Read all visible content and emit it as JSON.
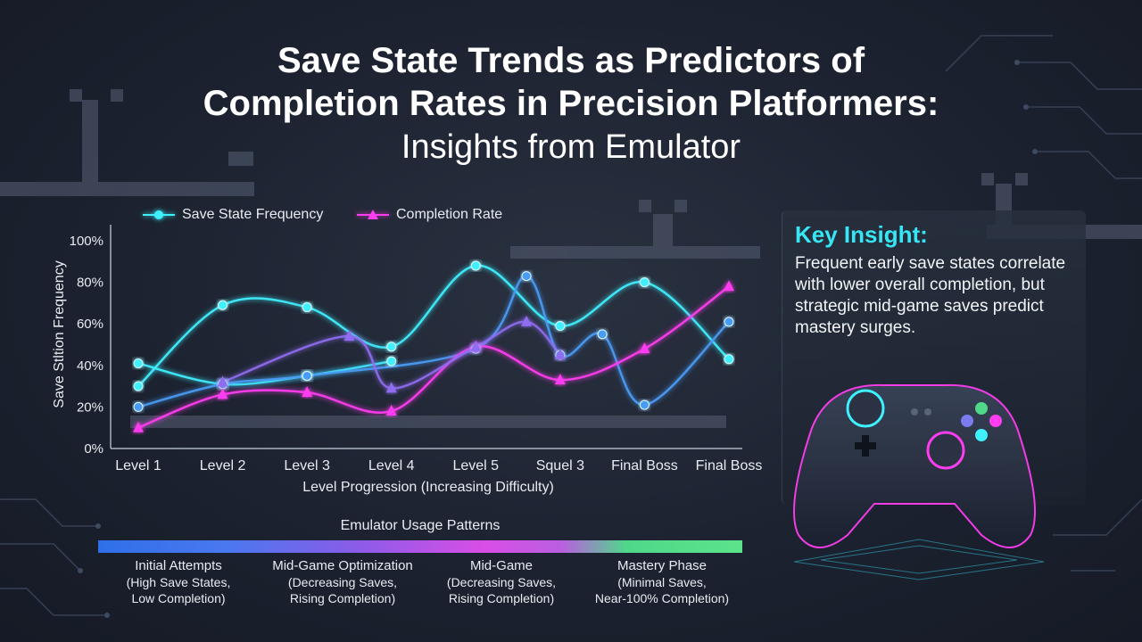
{
  "title_line1": "Save State Trends as Predictors of",
  "title_line2": "Completion Rates in Precision Platformers:",
  "subtitle": "Insights from Emulator",
  "legend": {
    "series1": "Save State Frequency",
    "series2": "Completion Rate"
  },
  "chart_data": {
    "type": "line",
    "categories": [
      "Level 1",
      "Level 2",
      "Level 3",
      "Level 4",
      "Level 5",
      "Squel 3",
      "Final Boss",
      "Final Boss"
    ],
    "xlabel": "Level Progression (Increasing Difficulty)",
    "ylabel": "Save Stltion Frequency",
    "yticks": [
      "0%",
      "20%",
      "40%",
      "60%",
      "80%",
      "100%"
    ],
    "ylim": [
      0,
      100
    ],
    "legend_position": "top",
    "series": [
      {
        "name": "Save State Frequency",
        "color": "#3ff0ff",
        "marker": "circle",
        "points": [
          [
            0,
            30
          ],
          [
            1,
            69
          ],
          [
            2,
            68
          ],
          [
            3,
            49
          ],
          [
            4,
            88
          ],
          [
            5,
            59
          ],
          [
            6,
            80
          ],
          [
            7,
            43
          ]
        ]
      },
      {
        "name": "Save State Frequency",
        "color": "#3ff0ff",
        "marker": "circle",
        "points": [
          [
            0,
            41
          ],
          [
            1,
            31
          ],
          [
            2,
            35
          ],
          [
            3,
            42
          ]
        ]
      },
      {
        "name": "Save State Frequency",
        "color": "#4a9cf5",
        "marker": "circle",
        "points": [
          [
            0,
            20
          ],
          [
            1,
            31
          ],
          [
            2,
            35
          ],
          [
            4,
            48
          ],
          [
            4.6,
            83
          ],
          [
            5,
            45
          ],
          [
            5.5,
            55
          ],
          [
            6,
            21
          ],
          [
            7,
            61
          ]
        ]
      },
      {
        "name": "Completion Rate",
        "color": "#ff3df0",
        "marker": "triangle",
        "points": [
          [
            0,
            10
          ],
          [
            1,
            26
          ],
          [
            2,
            27
          ],
          [
            3,
            18
          ],
          [
            4,
            49
          ],
          [
            5,
            33
          ],
          [
            6,
            48
          ],
          [
            7,
            78
          ]
        ]
      },
      {
        "name": "Completion Rate",
        "color": "#8f6cf0",
        "marker": "triangle",
        "points": [
          [
            1,
            32
          ],
          [
            2.5,
            54
          ],
          [
            3,
            29
          ],
          [
            4,
            49
          ],
          [
            4.6,
            61
          ],
          [
            5,
            45
          ]
        ]
      }
    ]
  },
  "usage": {
    "title": "Emulator Usage Patterns",
    "phases": [
      {
        "head": "Initial Attempts",
        "l1": "(High Save States,",
        "l2": "Low Completion)"
      },
      {
        "head": "Mid-Game Optimization",
        "l1": "(Decreasing Saves,",
        "l2": "Rising Completion)"
      },
      {
        "head": "Mid-Game",
        "l1": "(Decreasing Saves,",
        "l2": "Rising Completion)"
      },
      {
        "head": "Mastery Phase",
        "l1": "(Minimal Saves,",
        "l2": "Near-100% Completion)"
      }
    ]
  },
  "insight": {
    "heading": "Key Insight:",
    "text": "Frequent early save states correlate with lower overall completion, but strategic mid-game saves predict mastery surges."
  },
  "colors": {
    "cyan": "#3ff0ff",
    "magenta": "#ff3df0",
    "blue": "#4a9cf5",
    "violet": "#8f6cf0",
    "accent_heading": "#36e6f5"
  },
  "icons": {
    "controller": "gamepad-icon"
  }
}
